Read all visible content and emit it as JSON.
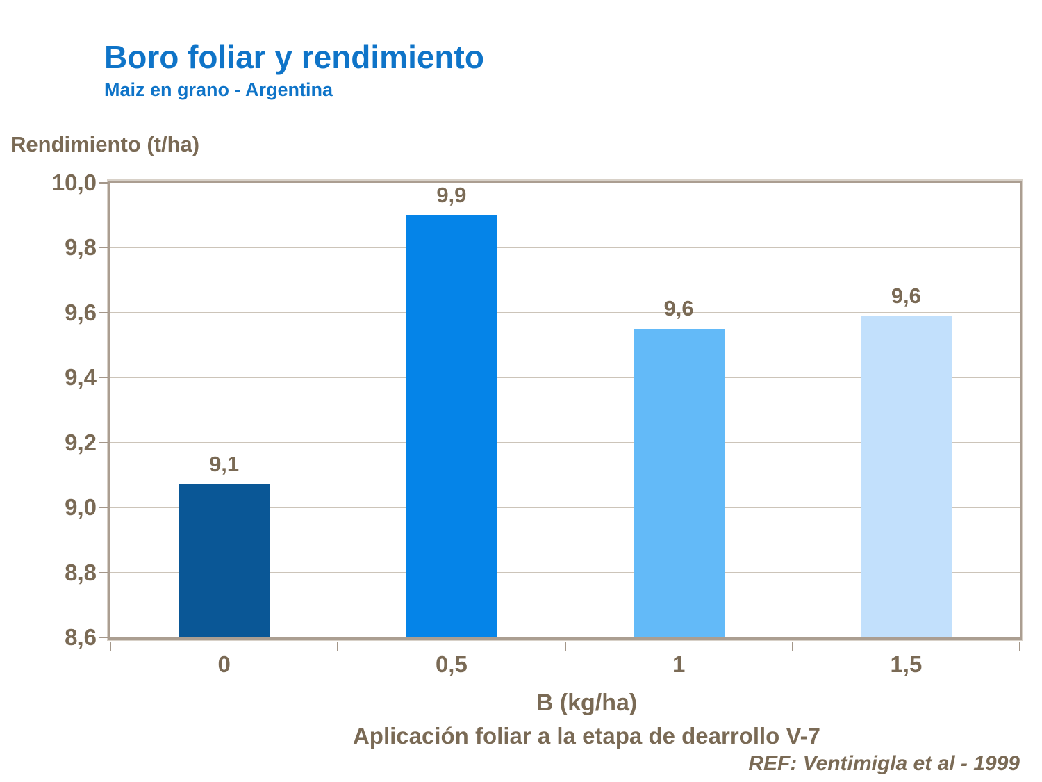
{
  "header": {
    "title": "Boro foliar y rendimiento",
    "subtitle": "Maiz en grano - Argentina"
  },
  "footer": {
    "reference": "REF: Ventimigla et al - 1999"
  },
  "colors": {
    "title_blue": "#0f74c8",
    "text_brown": "#7a6a55",
    "gridline": "#ccc4b9",
    "plot_border": "#ab9e91",
    "tick": "#a4978a"
  },
  "chart_data": {
    "type": "bar",
    "title": "Boro foliar y rendimiento",
    "subtitle": "Maiz en grano - Argentina",
    "ylabel": "Rendimiento (t/ha)",
    "xlabel": "B (kg/ha)",
    "xlabel2": "Aplicación foliar a la etapa de dearrollo V-7",
    "categories": [
      "0",
      "0,5",
      "1",
      "1,5"
    ],
    "values": [
      9.07,
      9.9,
      9.55,
      9.59
    ],
    "value_labels": [
      "9,1",
      "9,9",
      "9,6",
      "9,6"
    ],
    "bar_colors": [
      "#0a5796",
      "#0584e8",
      "#63baf8",
      "#c2e0fc"
    ],
    "ylim": [
      8.6,
      10.0
    ],
    "ytick_step": 0.2,
    "ytick_labels": [
      "10,0",
      "9,8",
      "9,6",
      "9,4",
      "9,2",
      "9,0",
      "8,8",
      "8,6"
    ],
    "grid": true,
    "legend": null,
    "reference": "REF: Ventimigla et al - 1999"
  }
}
